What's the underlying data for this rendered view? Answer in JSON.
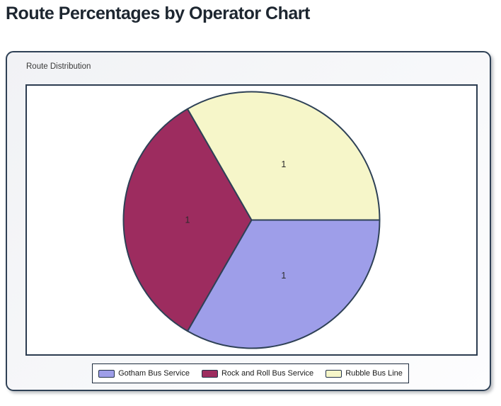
{
  "header": {
    "title": "Route Percentages by Operator Chart"
  },
  "panel": {
    "group_label": "Route Distribution"
  },
  "chart_data": {
    "type": "pie",
    "title": "Route Distribution",
    "labels": [
      "Gotham Bus Service",
      "Rock and Roll Bus Service",
      "Rubble Bus Line"
    ],
    "values": [
      1,
      1,
      1
    ],
    "data_labels": [
      "1",
      "1",
      "1"
    ],
    "colors": [
      "#9e9ee9",
      "#9d2c5f",
      "#f6f6c9"
    ],
    "slice_border_color": "#2e4156",
    "data_label_color": "#2b2b2b",
    "start_angle_deg": 0,
    "direction": "clockwise",
    "legend_position": "bottom"
  }
}
